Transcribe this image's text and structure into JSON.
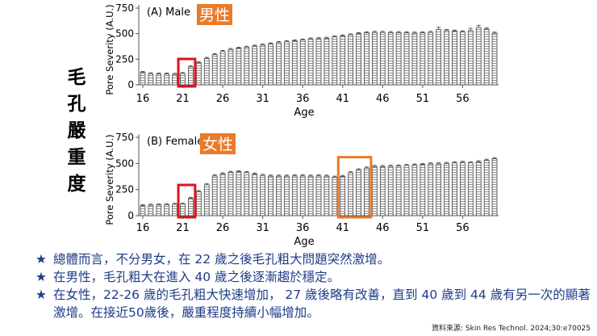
{
  "side_title": [
    "毛",
    "孔",
    "嚴",
    "重",
    "度"
  ],
  "chart_data": [
    {
      "type": "bar",
      "panel": "(A) Male",
      "badge": "男性",
      "ylabel": "Pore Severity (A.U.)",
      "xlabel": "Age",
      "ylim": [
        0,
        750
      ],
      "yticks": [
        0,
        250,
        500,
        750
      ],
      "xticks": [
        16,
        21,
        26,
        31,
        36,
        41,
        46,
        51,
        56
      ],
      "x": [
        16,
        17,
        18,
        19,
        20,
        21,
        22,
        23,
        24,
        25,
        26,
        27,
        28,
        29,
        30,
        31,
        32,
        33,
        34,
        35,
        36,
        37,
        38,
        39,
        40,
        41,
        42,
        43,
        44,
        45,
        46,
        47,
        48,
        49,
        50,
        51,
        52,
        53,
        54,
        55,
        56,
        57,
        58,
        59,
        60
      ],
      "values": [
        120,
        108,
        105,
        105,
        102,
        110,
        175,
        215,
        258,
        295,
        325,
        345,
        358,
        368,
        378,
        388,
        400,
        412,
        420,
        430,
        438,
        448,
        450,
        455,
        468,
        478,
        488,
        500,
        508,
        512,
        512,
        510,
        510,
        508,
        505,
        508,
        512,
        540,
        530,
        525,
        518,
        530,
        560,
        545,
        505
      ],
      "error_high_at": [
        53,
        57,
        58
      ],
      "highlight_ages": [
        [
          21,
          22
        ]
      ]
    },
    {
      "type": "bar",
      "panel": "(B) Female",
      "badge": "女性",
      "ylabel": "Pore Severity (A.U.)",
      "xlabel": "Age",
      "ylim": [
        0,
        750
      ],
      "yticks": [
        0,
        250,
        500,
        750
      ],
      "xticks": [
        16,
        21,
        26,
        31,
        36,
        41,
        46,
        51,
        56
      ],
      "x": [
        16,
        17,
        18,
        19,
        20,
        21,
        22,
        23,
        24,
        25,
        26,
        27,
        28,
        29,
        30,
        31,
        32,
        33,
        34,
        35,
        36,
        37,
        38,
        39,
        40,
        41,
        42,
        43,
        44,
        45,
        46,
        47,
        48,
        49,
        50,
        51,
        52,
        53,
        54,
        55,
        56,
        57,
        58,
        59,
        60
      ],
      "values": [
        95,
        100,
        102,
        105,
        108,
        110,
        165,
        230,
        295,
        380,
        400,
        415,
        420,
        412,
        398,
        385,
        378,
        378,
        378,
        380,
        380,
        378,
        380,
        378,
        368,
        375,
        410,
        438,
        455,
        470,
        470,
        472,
        475,
        480,
        485,
        490,
        495,
        495,
        500,
        505,
        510,
        505,
        515,
        530,
        545
      ],
      "highlight_ages": [
        [
          21,
          22
        ],
        [
          41,
          44
        ]
      ]
    }
  ],
  "bullets": [
    {
      "star": "★",
      "text": "總體而言，不分男女，在 22 歲之後毛孔粗大問題突然激增。"
    },
    {
      "star": "★",
      "text": "在男性，毛孔粗大在進入 40 歲之後逐漸趨於穩定。"
    },
    {
      "star": "★",
      "text": "在女性，22-26 歲的毛孔粗大快速增加， 27 歲後略有改善，直到 40 歲到 44 歲有另一次的顯著激增。在接近50歲後，嚴重程度持續小幅增加。"
    }
  ],
  "citation": "資料來源: Skin Res Technol. 2024;30:e70025",
  "colors": {
    "bar": "#ffffff",
    "bar_stroke": "#404040",
    "bar_hatch": "#8c8c8c",
    "highlight_red": "#e0121c",
    "highlight_orange": "#ea7a2a",
    "badge_bg": "#ea7a2a",
    "badge_text": "#ffffff",
    "bullet_text": "#1f3c88"
  }
}
